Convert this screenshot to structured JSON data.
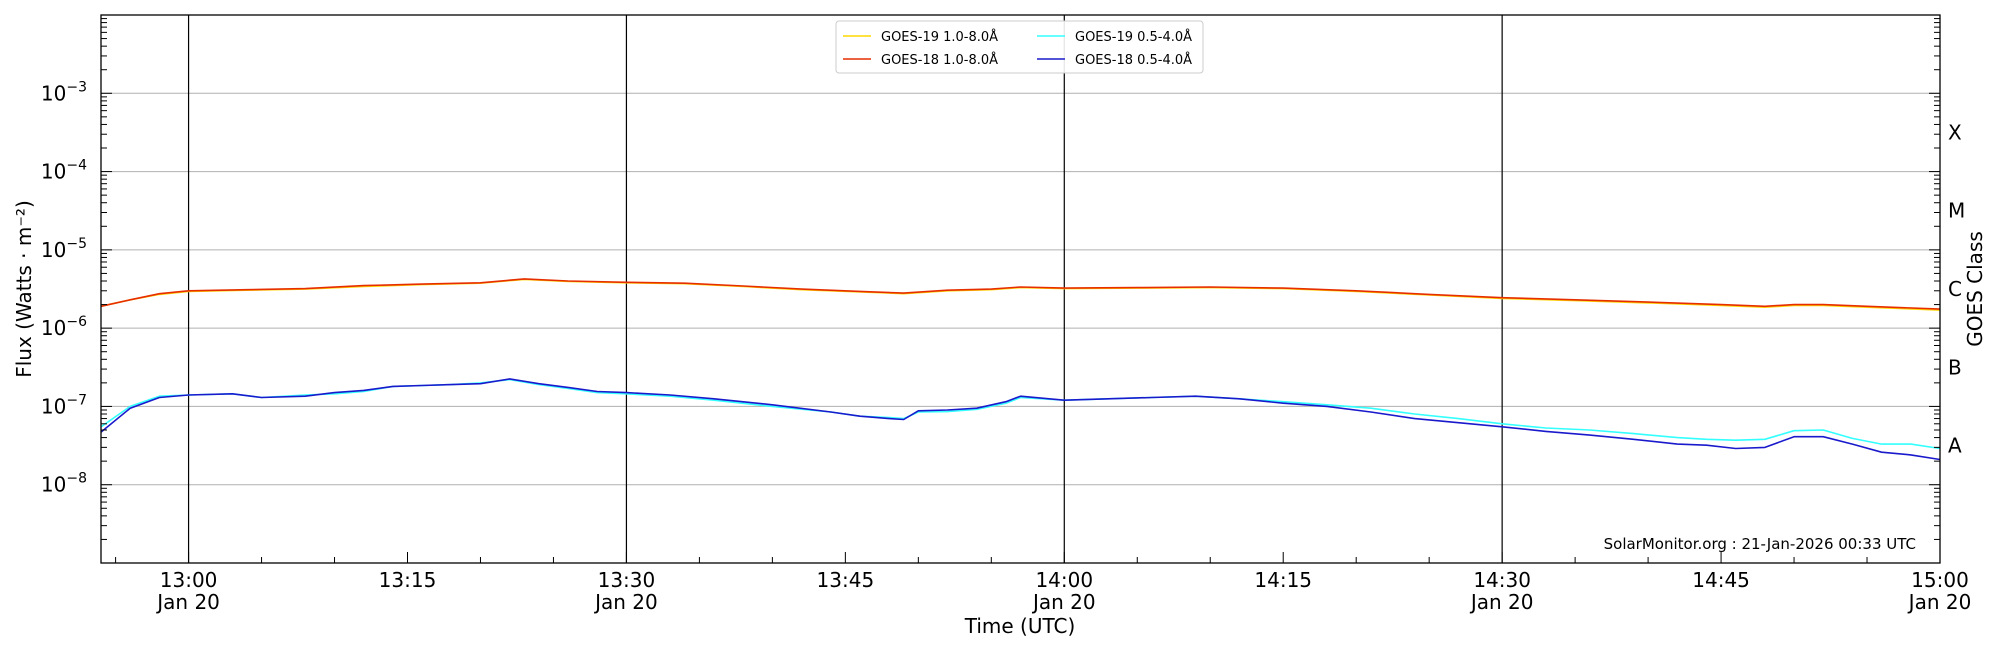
{
  "chart_data": {
    "type": "line",
    "ylabel": "Flux (Watts · m⁻²)",
    "xlabel": "Time (UTC)",
    "y2label": "GOES Class",
    "yscale": "log",
    "ylim": [
      1e-09,
      0.01
    ],
    "xlim": [
      "12:54",
      "15:00"
    ],
    "date": "Jan 20",
    "grid": "horizontal",
    "legend_position": "top-center",
    "annotation": "SolarMonitor.org : 21-Jan-2026 00:33 UTC",
    "y_ticks": [
      {
        "value": 1e-08,
        "label": "10",
        "exp": "−8"
      },
      {
        "value": 1e-07,
        "label": "10",
        "exp": "−7"
      },
      {
        "value": 1e-06,
        "label": "10",
        "exp": "−6"
      },
      {
        "value": 1e-05,
        "label": "10",
        "exp": "−5"
      },
      {
        "value": 0.0001,
        "label": "10",
        "exp": "−4"
      },
      {
        "value": 0.001,
        "label": "10",
        "exp": "−3"
      }
    ],
    "x_ticks": [
      {
        "time": "13:00",
        "label": "13:00",
        "date_label": "Jan 20"
      },
      {
        "time": "13:15",
        "label": "13:15",
        "date_label": ""
      },
      {
        "time": "13:30",
        "label": "13:30",
        "date_label": "Jan 20"
      },
      {
        "time": "13:45",
        "label": "13:45",
        "date_label": ""
      },
      {
        "time": "14:00",
        "label": "14:00",
        "date_label": "Jan 20"
      },
      {
        "time": "14:15",
        "label": "14:15",
        "date_label": ""
      },
      {
        "time": "14:30",
        "label": "14:30",
        "date_label": "Jan 20"
      },
      {
        "time": "14:45",
        "label": "14:45",
        "date_label": ""
      },
      {
        "time": "15:00",
        "label": "15:00",
        "date_label": "Jan 20"
      }
    ],
    "vertical_lines": [
      "13:00",
      "13:30",
      "14:00",
      "14:30"
    ],
    "classes": [
      {
        "label": "A",
        "value": 1e-08
      },
      {
        "label": "B",
        "value": 1e-07
      },
      {
        "label": "C",
        "value": 1e-06
      },
      {
        "label": "M",
        "value": 1e-05
      },
      {
        "label": "X",
        "value": 0.0001
      }
    ],
    "series": [
      {
        "name": "GOES-19 1.0-8.0Å",
        "color": "#ffd700",
        "x": [
          "12:54",
          "12:56",
          "12:58",
          "13:00",
          "13:04",
          "13:08",
          "13:12",
          "13:16",
          "13:20",
          "13:23",
          "13:26",
          "13:30",
          "13:34",
          "13:38",
          "13:42",
          "13:46",
          "13:49",
          "13:52",
          "13:55",
          "13:57",
          "14:00",
          "14:05",
          "14:10",
          "14:15",
          "14:20",
          "14:25",
          "14:30",
          "14:35",
          "14:40",
          "14:45",
          "14:48",
          "14:50",
          "14:52",
          "14:55",
          "15:00"
        ],
        "y": [
          1.9e-06,
          2.3e-06,
          2.7e-06,
          2.95e-06,
          3.05e-06,
          3.15e-06,
          3.4e-06,
          3.6e-06,
          3.75e-06,
          4.2e-06,
          3.95e-06,
          3.8e-06,
          3.7e-06,
          3.4e-06,
          3.1e-06,
          2.9e-06,
          2.75e-06,
          3e-06,
          3.1e-06,
          3.3e-06,
          3.2e-06,
          3.25e-06,
          3.3e-06,
          3.2e-06,
          2.95e-06,
          2.65e-06,
          2.4e-06,
          2.25e-06,
          2.1e-06,
          1.95e-06,
          1.85e-06,
          1.95e-06,
          1.95e-06,
          1.85e-06,
          1.7e-06
        ]
      },
      {
        "name": "GOES-18 1.0-8.0Å",
        "color": "#e62e00",
        "x": [
          "12:54",
          "12:56",
          "12:58",
          "13:00",
          "13:04",
          "13:08",
          "13:12",
          "13:16",
          "13:20",
          "13:23",
          "13:26",
          "13:30",
          "13:34",
          "13:38",
          "13:42",
          "13:46",
          "13:49",
          "13:52",
          "13:55",
          "13:57",
          "14:00",
          "14:05",
          "14:10",
          "14:15",
          "14:20",
          "14:25",
          "14:30",
          "14:35",
          "14:40",
          "14:45",
          "14:48",
          "14:50",
          "14:52",
          "14:55",
          "15:00"
        ],
        "y": [
          1.9e-06,
          2.3e-06,
          2.75e-06,
          3e-06,
          3.1e-06,
          3.2e-06,
          3.5e-06,
          3.65e-06,
          3.8e-06,
          4.25e-06,
          4e-06,
          3.85e-06,
          3.75e-06,
          3.45e-06,
          3.15e-06,
          2.95e-06,
          2.8e-06,
          3.05e-06,
          3.15e-06,
          3.35e-06,
          3.25e-06,
          3.3e-06,
          3.35e-06,
          3.25e-06,
          3e-06,
          2.7e-06,
          2.45e-06,
          2.3e-06,
          2.15e-06,
          2e-06,
          1.9e-06,
          2e-06,
          2e-06,
          1.9e-06,
          1.75e-06
        ]
      },
      {
        "name": "GOES-19 0.5-4.0Å",
        "color": "#33ffff",
        "x": [
          "12:54",
          "12:56",
          "12:58",
          "13:00",
          "13:03",
          "13:05",
          "13:08",
          "13:10",
          "13:12",
          "13:14",
          "13:16",
          "13:18",
          "13:20",
          "13:22",
          "13:24",
          "13:26",
          "13:28",
          "13:30",
          "13:33",
          "13:36",
          "13:40",
          "13:44",
          "13:46",
          "13:48",
          "13:49",
          "13:50",
          "13:52",
          "13:54",
          "13:56",
          "13:57",
          "14:00",
          "14:03",
          "14:06",
          "14:09",
          "14:12",
          "14:15",
          "14:18",
          "14:21",
          "14:24",
          "14:27",
          "14:30",
          "14:33",
          "14:36",
          "14:39",
          "14:42",
          "14:44",
          "14:46",
          "14:48",
          "14:50",
          "14:52",
          "14:54",
          "14:56",
          "14:58",
          "15:00"
        ],
        "y": [
          5.5e-08,
          1e-07,
          1.35e-07,
          1.4e-07,
          1.45e-07,
          1.3e-07,
          1.4e-07,
          1.45e-07,
          1.55e-07,
          1.8e-07,
          1.85e-07,
          1.9e-07,
          2e-07,
          2.2e-07,
          1.9e-07,
          1.7e-07,
          1.5e-07,
          1.45e-07,
          1.35e-07,
          1.2e-07,
          1e-07,
          8.5e-08,
          7.5e-08,
          7.2e-08,
          7e-08,
          8.5e-08,
          8.6e-08,
          9.2e-08,
          1.1e-07,
          1.3e-07,
          1.2e-07,
          1.25e-07,
          1.3e-07,
          1.35e-07,
          1.25e-07,
          1.15e-07,
          1.05e-07,
          9.5e-08,
          8e-08,
          7e-08,
          6e-08,
          5.3e-08,
          5e-08,
          4.5e-08,
          4e-08,
          3.8e-08,
          3.7e-08,
          3.8e-08,
          4.9e-08,
          5e-08,
          3.9e-08,
          3.3e-08,
          3.3e-08,
          2.9e-08
        ]
      },
      {
        "name": "GOES-18 0.5-4.0Å",
        "color": "#1a1acc",
        "x": [
          "12:54",
          "12:56",
          "12:58",
          "13:00",
          "13:03",
          "13:05",
          "13:08",
          "13:10",
          "13:12",
          "13:14",
          "13:16",
          "13:18",
          "13:20",
          "13:22",
          "13:24",
          "13:26",
          "13:28",
          "13:30",
          "13:33",
          "13:36",
          "13:40",
          "13:44",
          "13:46",
          "13:48",
          "13:49",
          "13:50",
          "13:52",
          "13:54",
          "13:56",
          "13:57",
          "14:00",
          "14:03",
          "14:06",
          "14:09",
          "14:12",
          "14:15",
          "14:18",
          "14:21",
          "14:24",
          "14:27",
          "14:30",
          "14:33",
          "14:36",
          "14:39",
          "14:42",
          "14:44",
          "14:46",
          "14:48",
          "14:50",
          "14:52",
          "14:54",
          "14:56",
          "14:58",
          "15:00"
        ],
        "y": [
          4.7e-08,
          9.5e-08,
          1.3e-07,
          1.4e-07,
          1.45e-07,
          1.3e-07,
          1.35e-07,
          1.5e-07,
          1.6e-07,
          1.8e-07,
          1.85e-07,
          1.9e-07,
          1.95e-07,
          2.25e-07,
          1.95e-07,
          1.75e-07,
          1.55e-07,
          1.5e-07,
          1.4e-07,
          1.25e-07,
          1.05e-07,
          8.5e-08,
          7.5e-08,
          7e-08,
          6.8e-08,
          8.8e-08,
          9e-08,
          9.5e-08,
          1.15e-07,
          1.35e-07,
          1.2e-07,
          1.25e-07,
          1.3e-07,
          1.35e-07,
          1.25e-07,
          1.1e-07,
          1e-07,
          8.5e-08,
          7e-08,
          6.2e-08,
          5.5e-08,
          4.8e-08,
          4.3e-08,
          3.8e-08,
          3.3e-08,
          3.2e-08,
          2.9e-08,
          3e-08,
          4.1e-08,
          4.1e-08,
          3.3e-08,
          2.6e-08,
          2.4e-08,
          2.1e-08
        ]
      }
    ]
  }
}
